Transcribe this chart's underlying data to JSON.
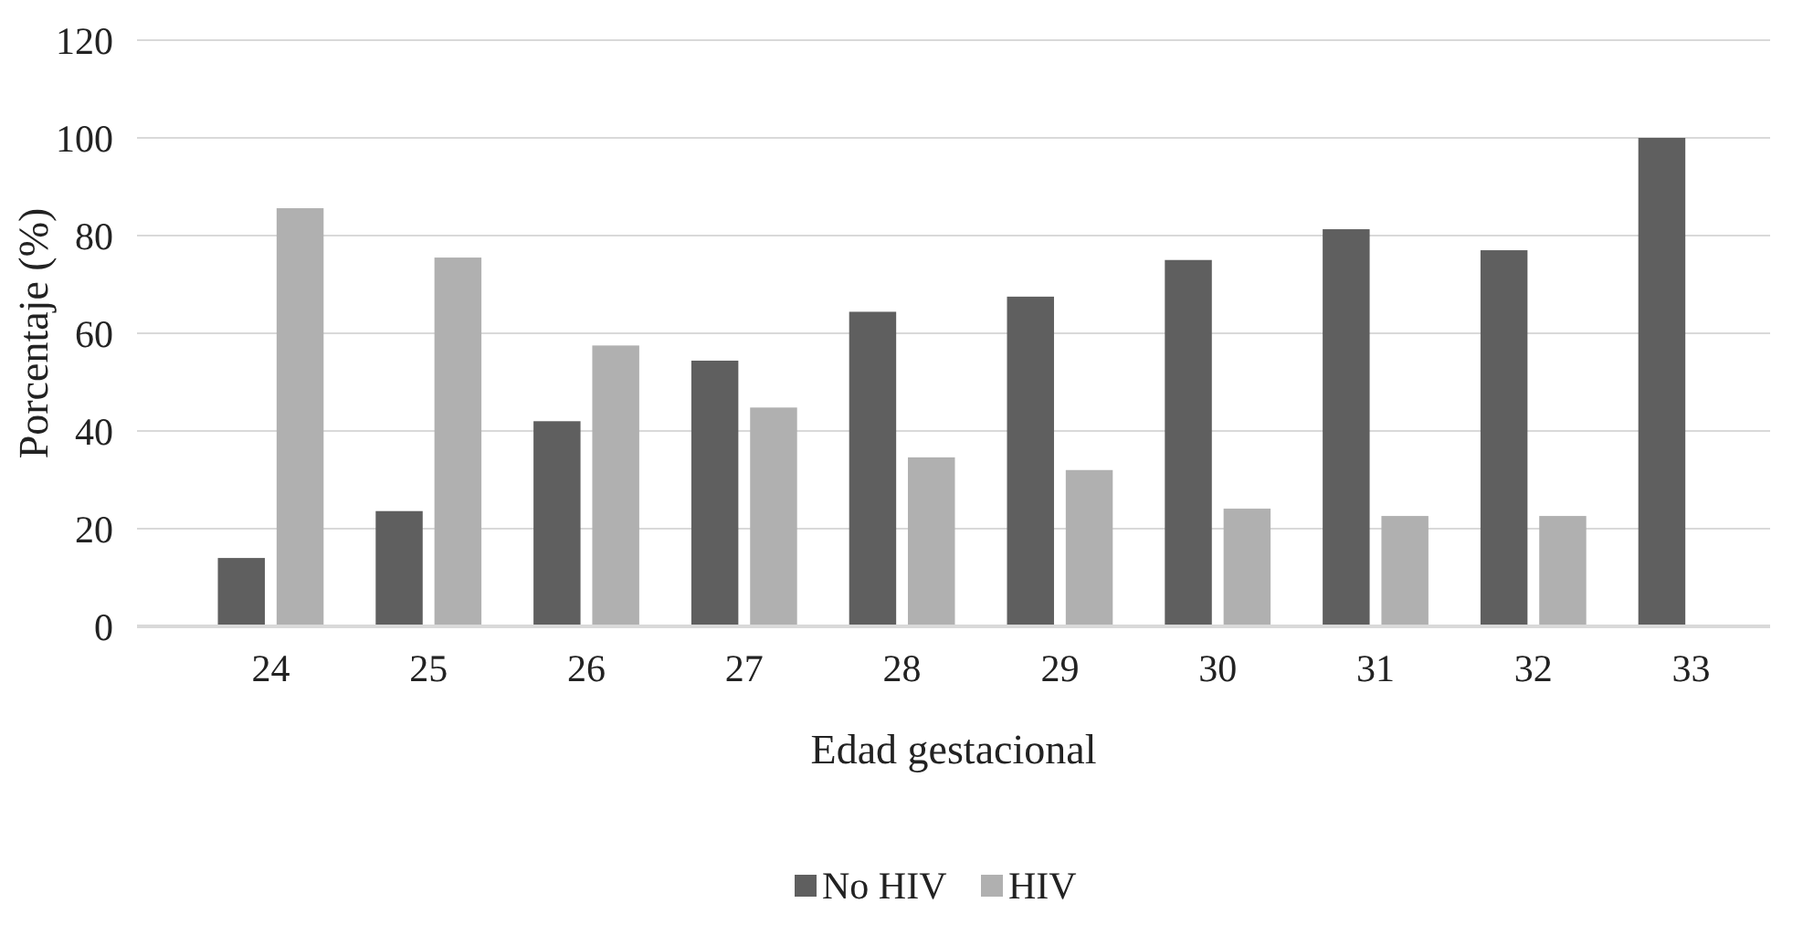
{
  "chart_data": {
    "type": "bar",
    "xlabel": "Edad gestacional",
    "ylabel": "Porcentaje (%)",
    "categories": [
      "24",
      "25",
      "26",
      "27",
      "28",
      "29",
      "30",
      "31",
      "32",
      "33"
    ],
    "series": [
      {
        "name": "No HIV",
        "color": "#5f5f5f",
        "values": [
          14,
          23.6,
          42,
          54.4,
          64.4,
          67.5,
          75,
          81.3,
          77,
          100
        ]
      },
      {
        "name": "HIV",
        "color": "#b0b0b0",
        "values": [
          85.6,
          75.5,
          57.5,
          44.8,
          34.6,
          32,
          24.1,
          22.6,
          22.6,
          0
        ]
      }
    ],
    "ylim": [
      0,
      120
    ],
    "yticks": [
      0,
      20,
      40,
      60,
      80,
      100,
      120
    ],
    "grid": "y",
    "legend": "bottom"
  }
}
